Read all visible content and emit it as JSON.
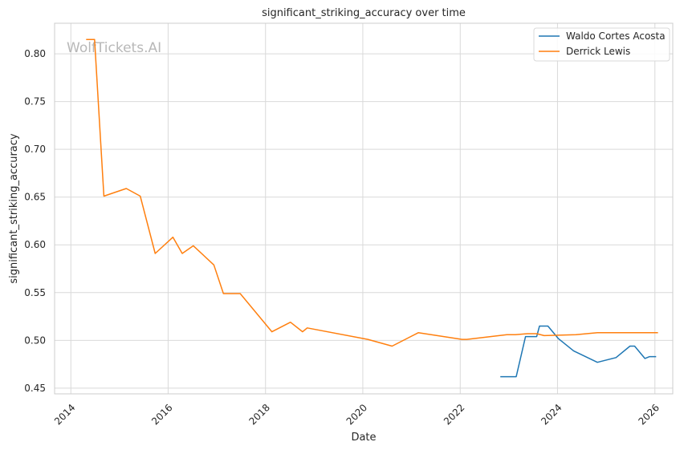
{
  "watermark": "WolfTickets.AI",
  "chart_data": {
    "type": "line",
    "title": "significant_striking_accuracy over time",
    "xlabel": "Date",
    "ylabel": "significant_striking_accuracy",
    "xlim": [
      "2013-09-01",
      "2026-05-15"
    ],
    "ylim": [
      0.444,
      0.832
    ],
    "x_ticks": [
      "2014",
      "2016",
      "2018",
      "2020",
      "2022",
      "2024",
      "2026"
    ],
    "y_ticks": [
      "0.45",
      "0.50",
      "0.55",
      "0.60",
      "0.65",
      "0.70",
      "0.75",
      "0.80"
    ],
    "grid": true,
    "legend_position": "top-right",
    "series": [
      {
        "name": "Waldo Cortes Acosta",
        "color": "#1f77b4",
        "points": [
          [
            "2022-10-29",
            0.462
          ],
          [
            "2023-02-25",
            0.462
          ],
          [
            "2023-05-06",
            0.504
          ],
          [
            "2023-07-29",
            0.504
          ],
          [
            "2023-08-19",
            0.515
          ],
          [
            "2023-10-21",
            0.515
          ],
          [
            "2024-01-06",
            0.502
          ],
          [
            "2024-05-01",
            0.489
          ],
          [
            "2024-10-26",
            0.477
          ],
          [
            "2025-03-15",
            0.482
          ],
          [
            "2025-06-28",
            0.494
          ],
          [
            "2025-08-02",
            0.494
          ],
          [
            "2025-10-18",
            0.481
          ],
          [
            "2025-11-22",
            0.483
          ],
          [
            "2026-01-10",
            0.483
          ]
        ]
      },
      {
        "name": "Derrick Lewis",
        "color": "#ff7f0e",
        "points": [
          [
            "2014-04-26",
            0.815
          ],
          [
            "2014-06-28",
            0.815
          ],
          [
            "2014-09-06",
            0.651
          ],
          [
            "2015-02-21",
            0.659
          ],
          [
            "2015-06-06",
            0.651
          ],
          [
            "2015-09-26",
            0.591
          ],
          [
            "2016-02-06",
            0.608
          ],
          [
            "2016-04-16",
            0.591
          ],
          [
            "2016-07-08",
            0.599
          ],
          [
            "2016-12-09",
            0.579
          ],
          [
            "2017-02-19",
            0.549
          ],
          [
            "2017-06-25",
            0.549
          ],
          [
            "2018-02-18",
            0.509
          ],
          [
            "2018-07-07",
            0.519
          ],
          [
            "2018-10-06",
            0.509
          ],
          [
            "2018-11-10",
            0.513
          ],
          [
            "2020-02-08",
            0.501
          ],
          [
            "2020-08-08",
            0.494
          ],
          [
            "2021-02-20",
            0.508
          ],
          [
            "2022-01-15",
            0.501
          ],
          [
            "2022-02-19",
            0.501
          ],
          [
            "2022-12-17",
            0.506
          ],
          [
            "2023-02-18",
            0.506
          ],
          [
            "2023-05-20",
            0.507
          ],
          [
            "2023-07-29",
            0.507
          ],
          [
            "2023-09-23",
            0.505
          ],
          [
            "2024-05-18",
            0.506
          ],
          [
            "2024-10-26",
            0.508
          ],
          [
            "2025-01-25",
            0.508
          ],
          [
            "2025-11-15",
            0.508
          ],
          [
            "2026-01-24",
            0.508
          ]
        ]
      }
    ]
  }
}
